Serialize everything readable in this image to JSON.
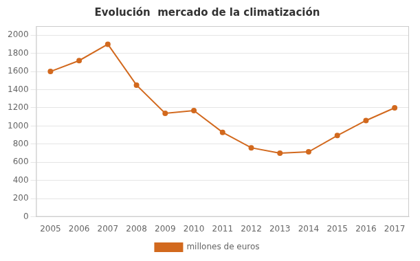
{
  "chart_data": {
    "type": "line",
    "title": "Evolución  mercado de la climatización",
    "x": [
      2005,
      2006,
      2007,
      2008,
      2009,
      2010,
      2011,
      2012,
      2013,
      2014,
      2015,
      2016,
      2017
    ],
    "series": [
      {
        "name": "millones de euros",
        "color": "#D2691E",
        "marker": "circle",
        "values": [
          1600,
          1720,
          1900,
          1450,
          1140,
          1170,
          930,
          760,
          700,
          715,
          895,
          1060,
          1200
        ]
      }
    ],
    "xlim": [
      2004.5,
      2017.5
    ],
    "xticks": [
      2005,
      2006,
      2007,
      2008,
      2009,
      2010,
      2011,
      2012,
      2013,
      2014,
      2015,
      2016,
      2017
    ],
    "ylim": [
      0,
      2100
    ],
    "yticks": [
      0,
      200,
      400,
      600,
      800,
      1000,
      1200,
      1400,
      1600,
      1800,
      2000
    ],
    "grid": "y",
    "legend": "bottom"
  }
}
